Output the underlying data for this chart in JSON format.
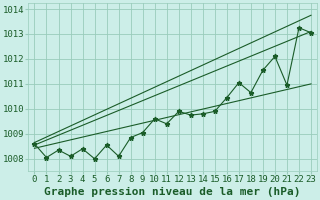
{
  "xlabel": "Graphe pression niveau de la mer (hPa)",
  "background_color": "#cceee8",
  "plot_bg_color": "#cceee8",
  "grid_color": "#99ccbb",
  "line_color": "#1a5c28",
  "ylim": [
    1007.5,
    1014.25
  ],
  "xlim": [
    -0.5,
    23.5
  ],
  "yticks": [
    1008,
    1009,
    1010,
    1011,
    1012,
    1013,
    1014
  ],
  "xticks": [
    0,
    1,
    2,
    3,
    4,
    5,
    6,
    7,
    8,
    9,
    10,
    11,
    12,
    13,
    14,
    15,
    16,
    17,
    18,
    19,
    20,
    21,
    22,
    23
  ],
  "x": [
    0,
    1,
    2,
    3,
    4,
    5,
    6,
    7,
    8,
    9,
    10,
    11,
    12,
    13,
    14,
    15,
    16,
    17,
    18,
    19,
    20,
    21,
    22,
    23
  ],
  "y_zigzag": [
    1008.6,
    1008.05,
    1008.35,
    1008.1,
    1008.4,
    1008.0,
    1008.55,
    1008.1,
    1008.85,
    1009.05,
    1009.6,
    1009.4,
    1009.9,
    1009.75,
    1009.8,
    1009.9,
    1010.45,
    1011.05,
    1010.65,
    1011.55,
    1012.1,
    1010.95,
    1013.25,
    1013.05
  ],
  "trend1_x": [
    0,
    23
  ],
  "trend1_y": [
    1008.55,
    1013.1
  ],
  "trend2_x": [
    0,
    23
  ],
  "trend2_y": [
    1008.42,
    1011.0
  ],
  "trend3_x": [
    0,
    23
  ],
  "trend3_y": [
    1008.65,
    1013.75
  ],
  "marker": "*",
  "marker_size": 3.5,
  "linewidth": 0.8,
  "xlabel_fontsize": 8,
  "tick_fontsize": 6.5
}
